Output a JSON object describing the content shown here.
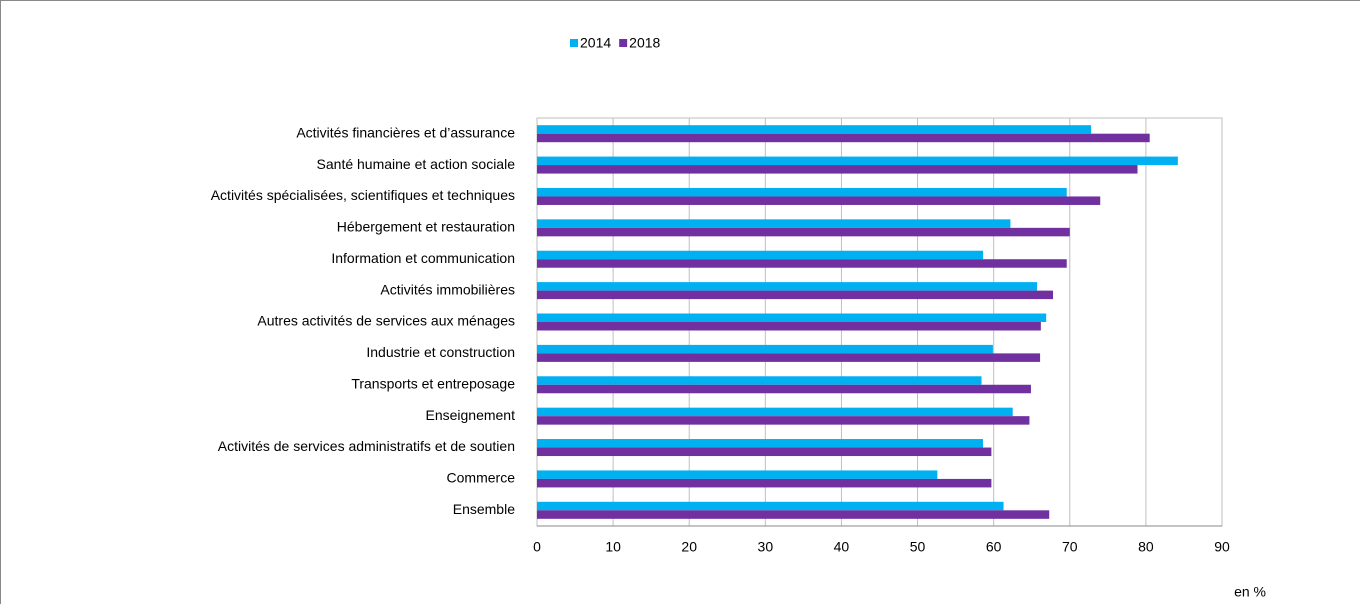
{
  "chart_data": {
    "type": "barh",
    "categories": [
      "Activités financières et d’assurance",
      "Santé humaine et action sociale",
      "Activités spécialisées, scientifiques et techniques",
      "Hébergement et restauration",
      "Information et communication",
      "Activités immobilières",
      "Autres activités de services aux ménages",
      "Industrie et construction",
      "Transports et entreposage",
      "Enseignement",
      "Activités de services administratifs et de soutien",
      "Commerce",
      "Ensemble"
    ],
    "series": [
      {
        "name": "2014",
        "color": "#00b0f0",
        "values": [
          72.8,
          84.2,
          69.6,
          62.2,
          58.6,
          65.7,
          66.9,
          59.9,
          58.4,
          62.5,
          58.6,
          52.6,
          61.3
        ]
      },
      {
        "name": "2018",
        "color": "#7030a0",
        "values": [
          80.5,
          78.9,
          74.0,
          70.0,
          69.6,
          67.8,
          66.2,
          66.1,
          64.9,
          64.7,
          59.7,
          59.7,
          67.3
        ]
      }
    ],
    "xlim": [
      0,
      90
    ],
    "xticks": [
      0,
      10,
      20,
      30,
      40,
      50,
      60,
      70,
      80,
      90
    ],
    "grid": true,
    "legend": "top",
    "annotation": "en %"
  }
}
